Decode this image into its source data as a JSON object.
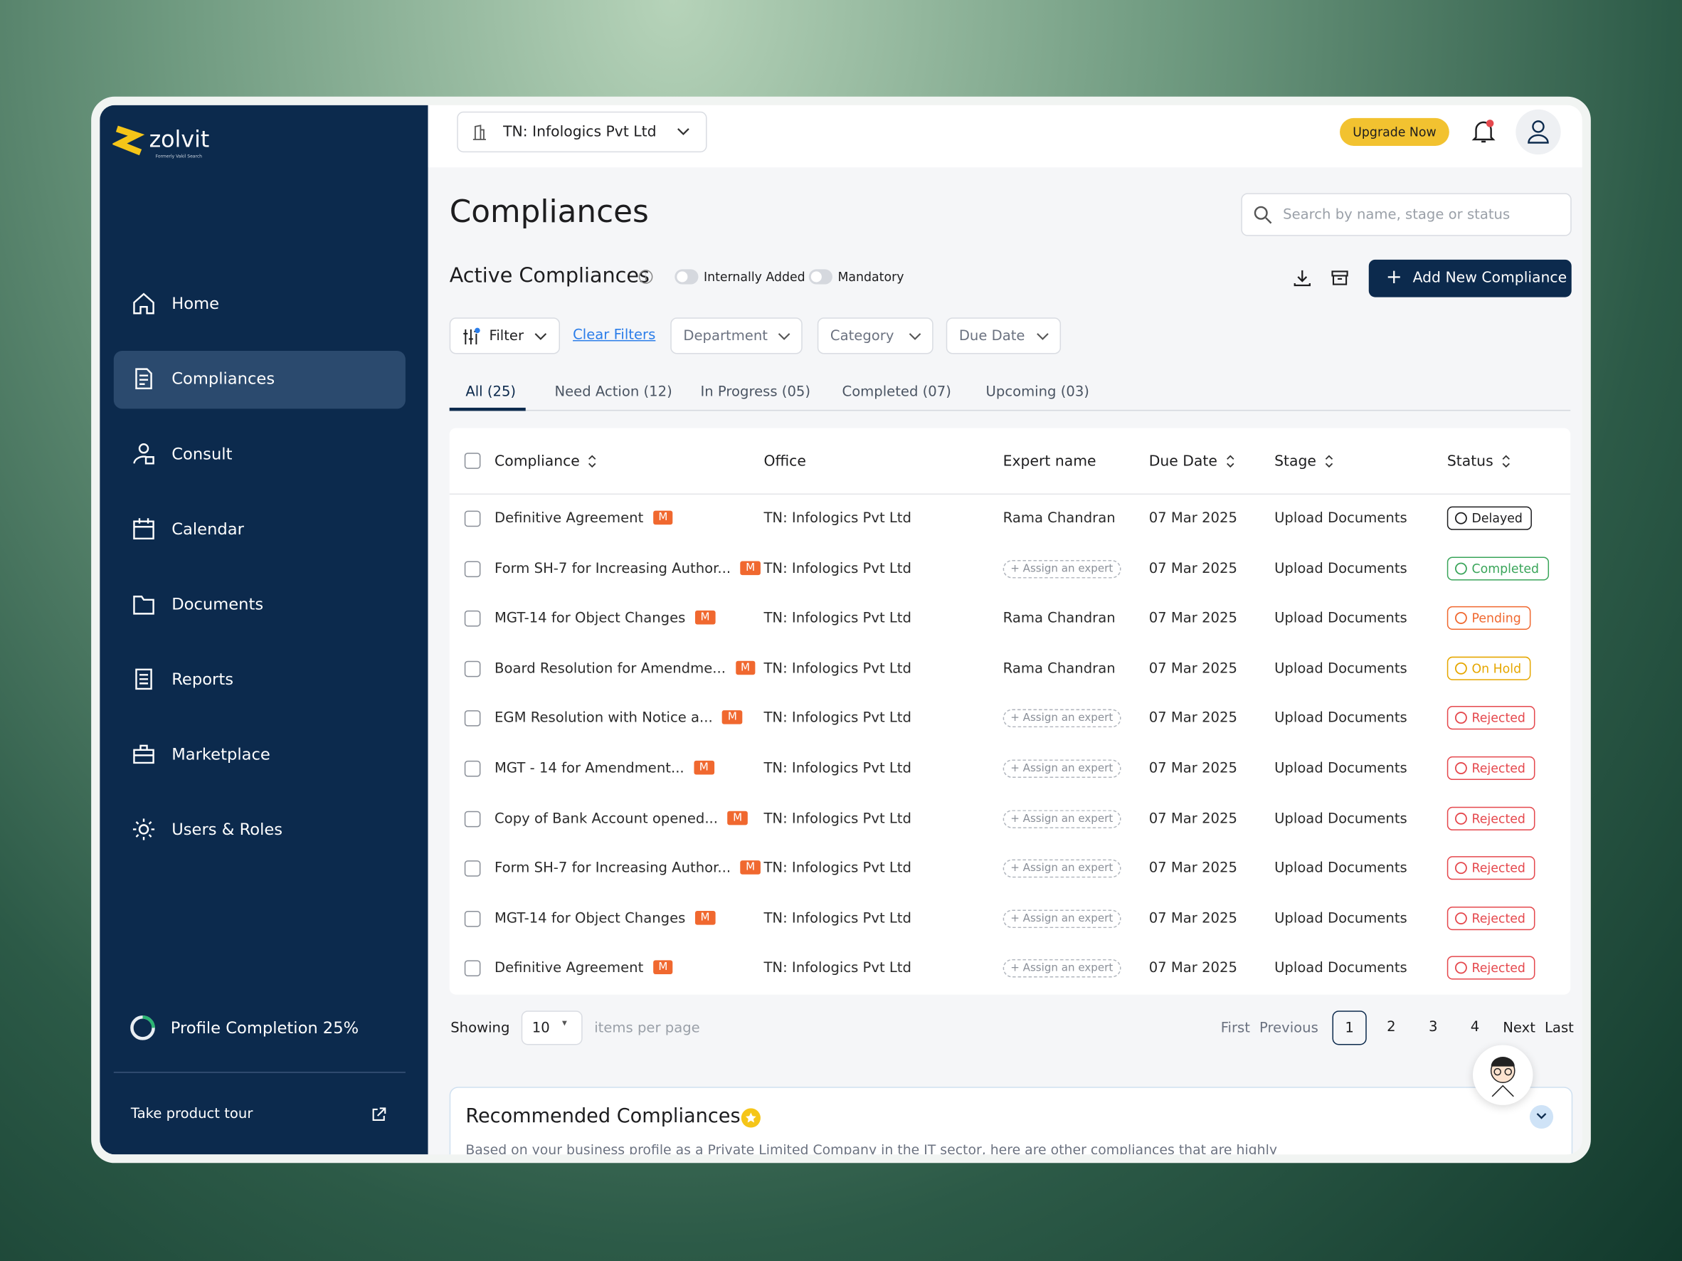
{
  "brand": {
    "name": "zolvit",
    "tagline": "Formerly Vakil Search"
  },
  "sidebar": {
    "nav": [
      "Home",
      "Compliances",
      "Consult",
      "Calendar",
      "Documents",
      "Reports",
      "Marketplace",
      "Users & Roles"
    ],
    "active": 1,
    "profile_label": "Profile Completion",
    "profile_value": "25%",
    "tour": "Take product tour"
  },
  "topbar": {
    "company": "TN: Infologics Pvt Ltd",
    "upgrade": "Upgrade Now"
  },
  "page": {
    "title": "Compliances",
    "search_placeholder": "Search by name, stage or status",
    "section": "Active Compliances",
    "toggles": [
      "Internally Added",
      "Mandatory"
    ],
    "add_button": "Add New Compliance"
  },
  "filters": {
    "filter": "Filter",
    "clear": "Clear Filters",
    "dropdowns": [
      "Department",
      "Category",
      "Due Date"
    ]
  },
  "tabs": [
    "All (25)",
    "Need Action (12)",
    "In Progress (05)",
    "Completed (07)",
    "Upcoming (03)"
  ],
  "table": {
    "columns": [
      "Compliance",
      "Office",
      "Expert name",
      "Due Date",
      "Stage",
      "Status"
    ],
    "badge": "M",
    "rows": [
      {
        "compliance": "Definitive Agreement",
        "office": "TN: Infologics Pvt Ltd",
        "expert": "Rama Chandran",
        "due": "07 Mar 2025",
        "stage": "Upload Documents",
        "status": "Delayed",
        "color": "#1d1d1f"
      },
      {
        "compliance": "Form SH-7 for Increasing Author...",
        "office": "TN: Infologics Pvt Ltd",
        "expert": "+ Assign an expert",
        "due": "07 Mar 2025",
        "stage": "Upload Documents",
        "status": "Completed",
        "color": "#3aa55a"
      },
      {
        "compliance": "MGT-14 for Object Changes",
        "office": "TN: Infologics Pvt Ltd",
        "expert": "Rama Chandran",
        "due": "07 Mar 2025",
        "stage": "Upload Documents",
        "status": "Pending",
        "color": "#f0682f"
      },
      {
        "compliance": "Board Resolution for Amendme...",
        "office": "TN: Infologics Pvt Ltd",
        "expert": "Rama Chandran",
        "due": "07 Mar 2025",
        "stage": "Upload Documents",
        "status": "On Hold",
        "color": "#e6a700"
      },
      {
        "compliance": "EGM Resolution with Notice a...",
        "office": "TN: Infologics Pvt Ltd",
        "expert": "+ Assign an expert",
        "due": "07 Mar 2025",
        "stage": "Upload Documents",
        "status": "Rejected",
        "color": "#e5484d"
      },
      {
        "compliance": "MGT - 14 for Amendment...",
        "office": "TN: Infologics Pvt Ltd",
        "expert": "+ Assign an expert",
        "due": "07 Mar 2025",
        "stage": "Upload Documents",
        "status": "Rejected",
        "color": "#e5484d"
      },
      {
        "compliance": "Copy of Bank Account opened...",
        "office": "TN: Infologics Pvt Ltd",
        "expert": "+ Assign an expert",
        "due": "07 Mar 2025",
        "stage": "Upload Documents",
        "status": "Rejected",
        "color": "#e5484d"
      },
      {
        "compliance": "Form SH-7 for Increasing Author...",
        "office": "TN: Infologics Pvt Ltd",
        "expert": "+ Assign an expert",
        "due": "07 Mar 2025",
        "stage": "Upload Documents",
        "status": "Rejected",
        "color": "#e5484d"
      },
      {
        "compliance": "MGT-14 for Object Changes",
        "office": "TN: Infologics Pvt Ltd",
        "expert": "+ Assign an expert",
        "due": "07 Mar 2025",
        "stage": "Upload Documents",
        "status": "Rejected",
        "color": "#e5484d"
      },
      {
        "compliance": "Definitive Agreement",
        "office": "TN: Infologics Pvt Ltd",
        "expert": "+ Assign an expert",
        "due": "07 Mar 2025",
        "stage": "Upload Documents",
        "status": "Rejected",
        "color": "#e5484d"
      }
    ]
  },
  "pagination": {
    "showing": "Showing",
    "per_page": "10",
    "items_label": "items per page",
    "first": "First",
    "previous": "Previous",
    "pages": [
      "1",
      "2",
      "3",
      "4"
    ],
    "current": 0,
    "next": "Next",
    "last": "Last"
  },
  "recommended": {
    "title": "Recommended Compliances",
    "text": "Based on your business profile as a Private Limited Company in the IT sector, here are other compliances that are highly"
  }
}
